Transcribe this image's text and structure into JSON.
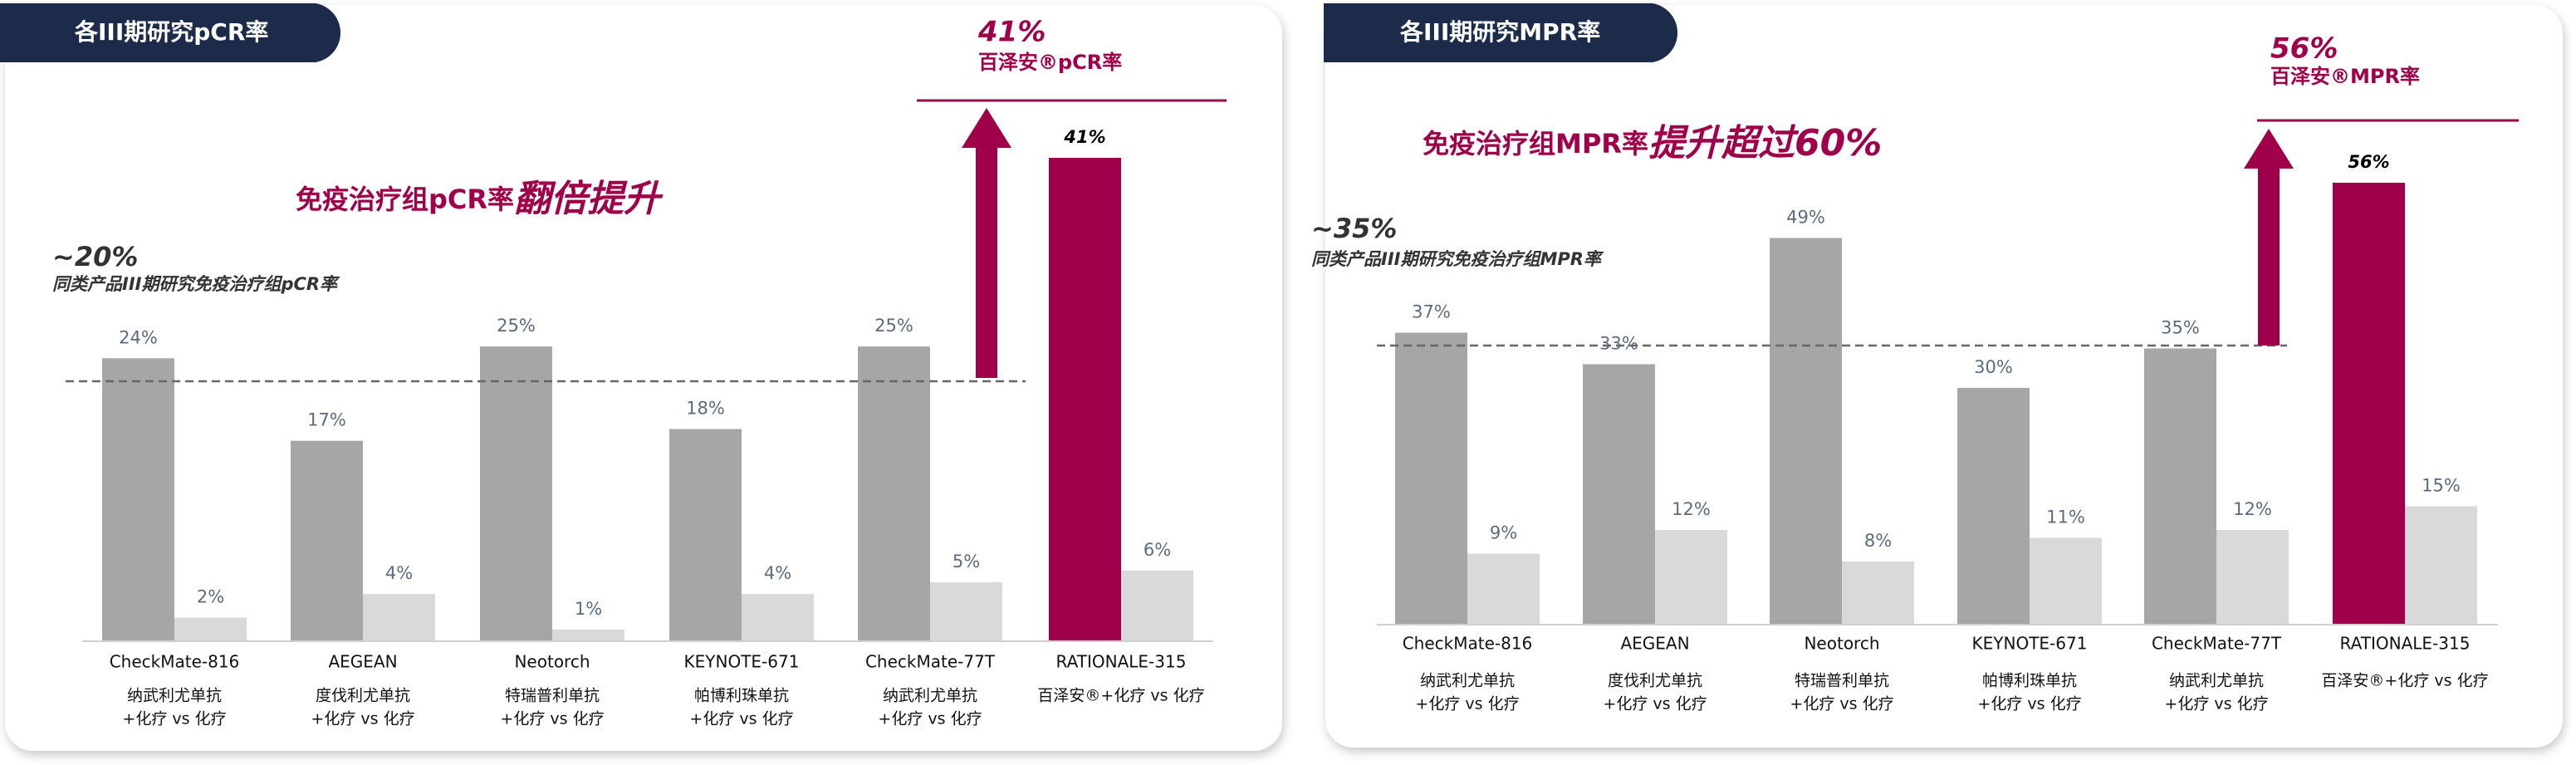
{
  "chart_data": [
    {
      "type": "bar",
      "title": "各III期研究pCR率",
      "headline": {
        "value": "41%",
        "label": "百泽安®pCR率"
      },
      "claim": {
        "text": "免疫治疗组pCR率",
        "emphasis": "翻倍提升"
      },
      "reference_line": {
        "value": 20,
        "label": "~20%",
        "note": "同类产品III期研究免疫治疗组pCR率"
      },
      "categories": [
        "CheckMate-816",
        "AEGEAN",
        "Neotorch",
        "KEYNOTE-671",
        "CheckMate-77T",
        "RATIONALE-315"
      ],
      "sublabels": [
        [
          "纳武利尤单抗",
          "+化疗 vs 化疗"
        ],
        [
          "度伐利尤单抗",
          "+化疗 vs 化疗"
        ],
        [
          "特瑞普利单抗",
          "+化疗 vs 化疗"
        ],
        [
          "帕博利珠单抗",
          "+化疗 vs 化疗"
        ],
        [
          "纳武利尤单抗",
          "+化疗 vs 化疗"
        ],
        [
          "百泽安®+化疗 vs 化疗"
        ]
      ],
      "series": [
        {
          "color": "#a6a6a6",
          "colors": [
            "#a6a6a6",
            "#a6a6a6",
            "#a6a6a6",
            "#a6a6a6",
            "#a6a6a6",
            "#a0004a"
          ],
          "values": [
            24,
            17,
            25,
            18,
            25,
            41
          ],
          "value_labels": [
            "24%",
            "17%",
            "25%",
            "18%",
            "25%",
            "41%"
          ]
        },
        {
          "color": "#d9d9d9",
          "values": [
            2,
            4,
            1,
            4,
            5,
            6
          ],
          "value_labels": [
            "2%",
            "4%",
            "1%",
            "4%",
            "5%",
            "6%"
          ]
        }
      ]
    },
    {
      "type": "bar",
      "title": "各III期研究MPR率",
      "headline": {
        "value": "56%",
        "label": "百泽安®MPR率"
      },
      "claim": {
        "text": "免疫治疗组MPR率",
        "emphasis": "提升超过60%"
      },
      "reference_line": {
        "value": 35,
        "label": "~35%",
        "note": "同类产品III期研究免疫治疗组MPR率"
      },
      "categories": [
        "CheckMate-816",
        "AEGEAN",
        "Neotorch",
        "KEYNOTE-671",
        "CheckMate-77T",
        "RATIONALE-315"
      ],
      "sublabels": [
        [
          "纳武利尤单抗",
          "+化疗 vs 化疗"
        ],
        [
          "度伐利尤单抗",
          "+化疗 vs 化疗"
        ],
        [
          "特瑞普利单抗",
          "+化疗 vs 化疗"
        ],
        [
          "帕博利珠单抗",
          "+化疗 vs 化疗"
        ],
        [
          "纳武利尤单抗",
          "+化疗 vs 化疗"
        ],
        [
          "百泽安®+化疗 vs 化疗"
        ]
      ],
      "series": [
        {
          "color": "#a6a6a6",
          "colors": [
            "#a6a6a6",
            "#a6a6a6",
            "#a6a6a6",
            "#a6a6a6",
            "#a6a6a6",
            "#a0004a"
          ],
          "values": [
            37,
            33,
            49,
            30,
            35,
            56
          ],
          "value_labels": [
            "37%",
            "33%",
            "49%",
            "30%",
            "35%",
            "56%"
          ]
        },
        {
          "color": "#d9d9d9",
          "values": [
            9,
            12,
            8,
            11,
            12,
            15
          ],
          "value_labels": [
            "9%",
            "12%",
            "8%",
            "11%",
            "12%",
            "15%"
          ]
        }
      ]
    }
  ]
}
